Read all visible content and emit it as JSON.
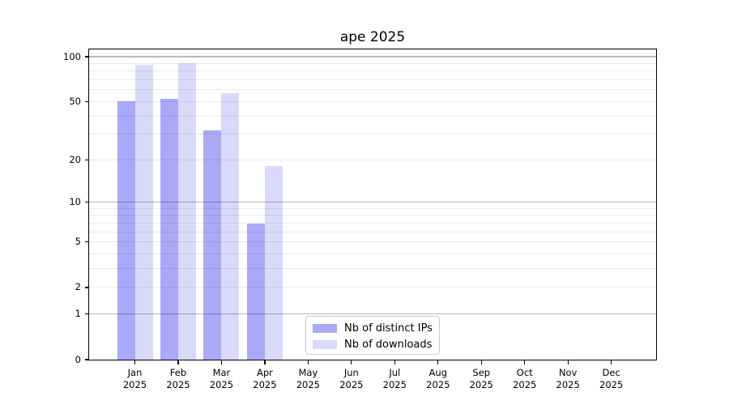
{
  "chart_data": {
    "type": "bar",
    "title": "ape 2025",
    "x": {
      "months": [
        "Jan",
        "Feb",
        "Mar",
        "Apr",
        "May",
        "Jun",
        "Jul",
        "Aug",
        "Sep",
        "Oct",
        "Nov",
        "Dec"
      ],
      "year": "2025"
    },
    "y_axis": {
      "scale": "log1p",
      "ylim": [
        0,
        112
      ],
      "tick_values": [
        100,
        50,
        20,
        10,
        5,
        2,
        1,
        0
      ],
      "major_gridlines": [
        100,
        10,
        1
      ],
      "minor_gridlines": [
        90,
        80,
        70,
        60,
        50,
        40,
        30,
        20,
        9,
        8,
        7,
        6,
        5,
        4,
        3,
        2
      ]
    },
    "series": [
      {
        "name": "Nb of distinct IPs",
        "color": "#a9a9f7",
        "values": [
          50,
          52,
          32,
          7,
          null,
          null,
          null,
          null,
          null,
          null,
          null,
          null
        ]
      },
      {
        "name": "Nb of downloads",
        "color": "#d9d9fa",
        "values": [
          88,
          91,
          57,
          18,
          null,
          null,
          null,
          null,
          null,
          null,
          null,
          null
        ]
      }
    ],
    "legend": {
      "position": "lower-center",
      "grid": "on"
    }
  }
}
